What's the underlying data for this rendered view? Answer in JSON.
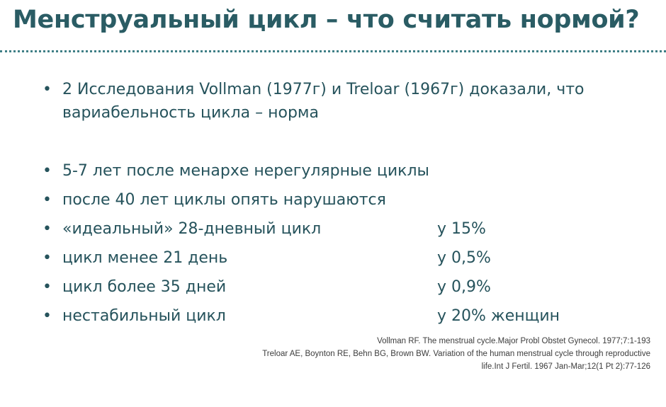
{
  "title": "Менструальный цикл – что считать нормой?",
  "intro": "2 Исследования Vollman (1977г) и  Treloar (1967г) доказали, что вариабельность цикла – норма",
  "bullets": [
    {
      "text": "5-7 лет после менархе нерегулярные  циклы"
    },
    {
      "text": "после 40 лет циклы опять нарушаются"
    },
    {
      "text": "«идеальный» 28-дневный  цикл",
      "value": "у 15%"
    },
    {
      "text": "цикл менее 21 день",
      "value": "у 0,5%"
    },
    {
      "text": "цикл более 35 дней",
      "value": "у 0,9%"
    },
    {
      "text": "нестабильный цикл",
      "value": "у 20% женщин"
    }
  ],
  "references": [
    "Vollman RF. The menstrual cycle.Major Probl Obstet Gynecol. 1977;7:1-193",
    "Treloar AE, Boynton RE, Behn BG, Brown BW. Variation of the human menstrual cycle through reproductive",
    "life.Int J Fertil. 1967 Jan-Mar;12(1 Pt 2):77-126"
  ]
}
